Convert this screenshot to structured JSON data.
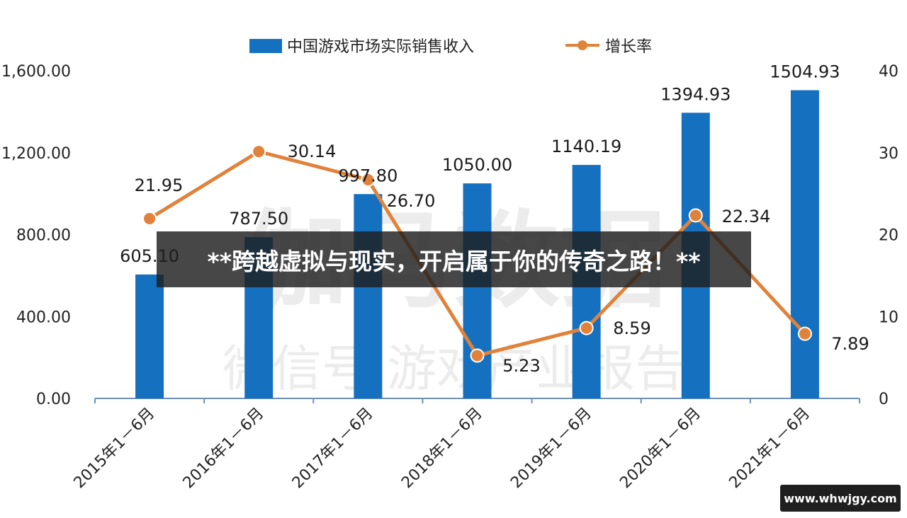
{
  "chart_data": {
    "type": "bar",
    "categories": [
      "2015年1－6月",
      "2016年1－6月",
      "2017年1－6月",
      "2018年1－6月",
      "2019年1－6月",
      "2020年1－6月",
      "2021年1－6月"
    ],
    "series": [
      {
        "name": "中国游戏市场实际销售收入",
        "type": "bar",
        "axis": "left",
        "values": [
          605.1,
          787.5,
          997.8,
          1050.0,
          1140.19,
          1394.93,
          1504.93
        ],
        "labels": [
          "605.10",
          "787.50",
          "997.80",
          "1050.00",
          "1140.19",
          "1394.93",
          "1504.93"
        ]
      },
      {
        "name": "增长率",
        "type": "line",
        "axis": "right",
        "values": [
          21.95,
          30.14,
          26.7,
          5.23,
          8.59,
          22.34,
          7.89
        ],
        "labels": [
          "21.95",
          "30.14",
          "26.70",
          "5.23",
          "8.59",
          "22.34",
          "7.89"
        ]
      }
    ],
    "y_left": {
      "min": 0,
      "max": 1600,
      "ticks": [
        "0.00",
        "400.00",
        "800.00",
        "1,200.00",
        "1,600.00"
      ],
      "tick_values": [
        0,
        400,
        800,
        1200,
        1600
      ]
    },
    "y_right": {
      "min": 0,
      "max": 40,
      "ticks": [
        "0",
        "10",
        "20",
        "30",
        "40"
      ],
      "tick_values": [
        0,
        10,
        20,
        30,
        40
      ]
    },
    "legend_position": "top",
    "grid": false,
    "title": "",
    "xlabel": "",
    "ylabel": ""
  },
  "colors": {
    "bar": "#1570c0",
    "line": "#e0823a"
  },
  "watermark": {
    "main": "伽马数据",
    "sub": "微信号 游戏产业报告"
  },
  "banner": {
    "text": "**跨越虚拟与现实，开启属于你的传奇之路！**"
  },
  "site_badge": {
    "text": "www.whwjgy.com"
  }
}
